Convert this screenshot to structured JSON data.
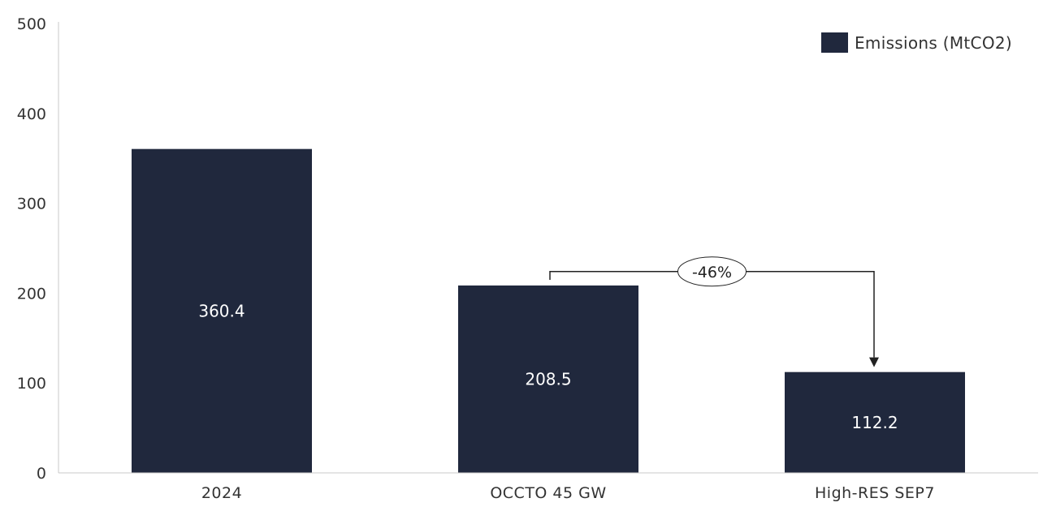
{
  "chart_data": {
    "type": "bar",
    "categories": [
      "2024",
      "OCCTO 45 GW",
      "High-RES SEP7"
    ],
    "series": [
      {
        "name": "Emissions (MtCO2)",
        "values": [
          360.4,
          208.5,
          112.2
        ]
      }
    ],
    "data_labels": [
      "360.4",
      "208.5",
      "112.2"
    ],
    "y_ticks": [
      "0",
      "100",
      "200",
      "300",
      "400",
      "500"
    ],
    "ylim": [
      0,
      500
    ],
    "grid": false,
    "legend_position": "top-right",
    "bar_color": "#20283d",
    "annotation": {
      "text": "-46%",
      "from_category": "OCCTO 45 GW",
      "to_category": "High-RES SEP7",
      "level": 224
    }
  }
}
